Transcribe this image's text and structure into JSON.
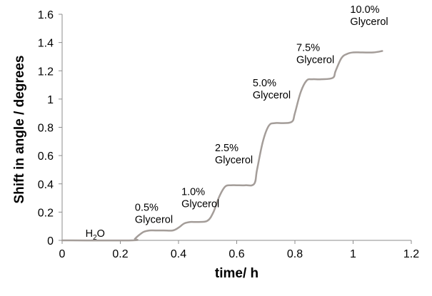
{
  "chart_data": {
    "type": "line",
    "xlabel": "time/ h",
    "ylabel": "Shift in angle / degrees",
    "xlim": [
      0,
      1.2
    ],
    "ylim": [
      0,
      1.6
    ],
    "x_ticks": [
      0,
      0.2,
      0.4,
      0.6,
      0.8,
      1,
      1.2
    ],
    "x_tick_labels": [
      "0",
      "0.2",
      "0.4",
      "0.6",
      "0.8",
      "1",
      "1.2"
    ],
    "y_ticks": [
      0,
      0.2,
      0.4,
      0.6,
      0.8,
      1,
      1.2,
      1.4,
      1.6
    ],
    "y_tick_labels": [
      "0",
      "0.2",
      "0.4",
      "0.6",
      "0.8",
      "1",
      "1.2",
      "1.4",
      "1.6"
    ],
    "grid": false,
    "line_color": "#a49d99",
    "series": [
      {
        "x": [
          0,
          0.03,
          0.24,
          0.25,
          0.26,
          0.28,
          0.3,
          0.32,
          0.35,
          0.38,
          0.4,
          0.42,
          0.44,
          0.47,
          0.5,
          0.52,
          0.54,
          0.56,
          0.58,
          0.6,
          0.63,
          0.66,
          0.67,
          0.69,
          0.71,
          0.73,
          0.76,
          0.79,
          0.8,
          0.82,
          0.84,
          0.86,
          0.89,
          0.93,
          0.94,
          0.96,
          0.98,
          1.0,
          1.03,
          1.07,
          1.1
        ],
        "y": [
          0,
          0,
          0,
          0.01,
          0.03,
          0.06,
          0.07,
          0.07,
          0.07,
          0.07,
          0.09,
          0.12,
          0.13,
          0.13,
          0.14,
          0.2,
          0.31,
          0.38,
          0.39,
          0.39,
          0.39,
          0.4,
          0.5,
          0.7,
          0.81,
          0.83,
          0.83,
          0.84,
          0.9,
          1.05,
          1.13,
          1.14,
          1.14,
          1.15,
          1.2,
          1.29,
          1.32,
          1.33,
          1.33,
          1.33,
          1.34
        ]
      }
    ],
    "annotations": [
      {
        "id": "h2o",
        "base": "H",
        "sub": "2",
        "tail": "O",
        "x": 0.08,
        "y": 0.025
      },
      {
        "id": "g05",
        "lines": [
          "0.5%",
          "Glycerol"
        ],
        "x": 0.25,
        "y": 0.21
      },
      {
        "id": "g10",
        "lines": [
          "1.0%",
          "Glycerol"
        ],
        "x": 0.41,
        "y": 0.32
      },
      {
        "id": "g25",
        "lines": [
          "2.5%",
          "Glycerol"
        ],
        "x": 0.525,
        "y": 0.63
      },
      {
        "id": "g50",
        "lines": [
          "5.0%",
          "Glycerol"
        ],
        "x": 0.655,
        "y": 1.09
      },
      {
        "id": "g75",
        "lines": [
          "7.5%",
          "Glycerol"
        ],
        "x": 0.805,
        "y": 1.34
      },
      {
        "id": "g100",
        "lines": [
          "10.0%",
          "Glycerol"
        ],
        "x": 0.99,
        "y": 1.61
      }
    ]
  }
}
